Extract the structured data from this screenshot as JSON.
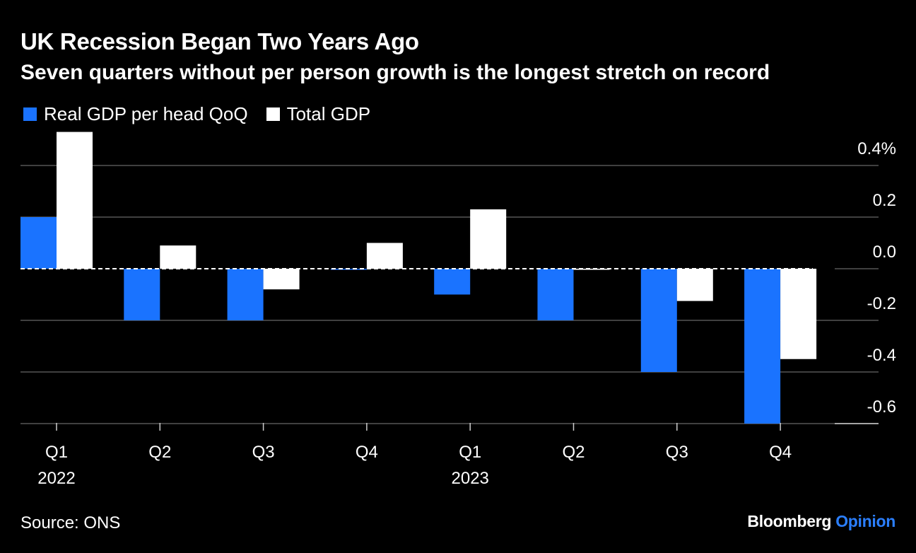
{
  "header": {
    "title": "UK Recession Began Two Years Ago",
    "subtitle": "Seven quarters without per person growth is the longest stretch on record"
  },
  "footer": {
    "source": "Source: ONS",
    "brand_primary": "Bloomberg",
    "brand_secondary": "Opinion"
  },
  "colors": {
    "background": "#000000",
    "series_blue": "#1a73ff",
    "series_white": "#ffffff",
    "gridline": "#555555",
    "brand_accent": "#2b7fff"
  },
  "chart_data": {
    "type": "bar",
    "title": "UK Recession Began Two Years Ago",
    "subtitle": "Seven quarters without per person growth is the longest stretch on record",
    "categories": [
      "Q1",
      "Q2",
      "Q3",
      "Q4",
      "Q1",
      "Q2",
      "Q3",
      "Q4"
    ],
    "year_labels": [
      "2022",
      "",
      "",
      "",
      "2023",
      "",
      "",
      ""
    ],
    "series": [
      {
        "name": "Real GDP per head QoQ",
        "color": "#1a73ff",
        "values": [
          0.2,
          -0.2,
          -0.2,
          0.0,
          -0.1,
          -0.2,
          -0.4,
          -0.6
        ]
      },
      {
        "name": "Total GDP",
        "color": "#ffffff",
        "values": [
          0.53,
          0.09,
          -0.08,
          0.1,
          0.23,
          0.0,
          -0.125,
          -0.35
        ]
      }
    ],
    "y_ticks": [
      {
        "value": 0.4,
        "label": "0.4%"
      },
      {
        "value": 0.2,
        "label": "0.2"
      },
      {
        "value": 0.0,
        "label": "0.0"
      },
      {
        "value": -0.2,
        "label": "-0.2"
      },
      {
        "value": -0.4,
        "label": "-0.4"
      },
      {
        "value": -0.6,
        "label": "-0.6"
      }
    ],
    "ylim": [
      -0.6,
      0.53
    ],
    "xlabel": "",
    "ylabel": "",
    "grid": true,
    "zero_line": "dashed",
    "legend_position": "top-left",
    "axis_position": "right"
  }
}
